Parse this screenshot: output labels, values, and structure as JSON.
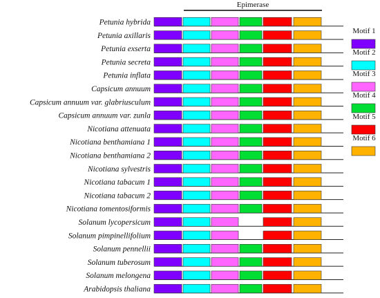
{
  "header": {
    "label": "Epimerase"
  },
  "motifs": [
    {
      "label": "Motif 1",
      "color": "#7F00FF"
    },
    {
      "label": "Motif 2",
      "color": "#00FFFF"
    },
    {
      "label": "Motif 3",
      "color": "#FF66FF"
    },
    {
      "label": "Motif 4",
      "color": "#00DD33"
    },
    {
      "label": "Motif 5",
      "color": "#FF0000"
    },
    {
      "label": "Motif 6",
      "color": "#FFB300"
    }
  ],
  "species": [
    {
      "name": "Petunia hybrida",
      "motifs": [
        1,
        2,
        3,
        4,
        5,
        6
      ]
    },
    {
      "name": "Petunia axillaris",
      "motifs": [
        1,
        2,
        3,
        4,
        5,
        6
      ]
    },
    {
      "name": "Petunia exserta",
      "motifs": [
        1,
        2,
        3,
        4,
        5,
        6
      ]
    },
    {
      "name": "Petunia secreta",
      "motifs": [
        1,
        2,
        3,
        4,
        5,
        6
      ]
    },
    {
      "name": "Petunia inflata",
      "motifs": [
        1,
        2,
        3,
        4,
        5,
        6
      ]
    },
    {
      "name": "Capsicum annuum",
      "motifs": [
        1,
        2,
        3,
        4,
        5,
        6
      ]
    },
    {
      "name": "Capsicum annuum var. glabriusculum",
      "motifs": [
        1,
        2,
        3,
        4,
        5,
        6
      ]
    },
    {
      "name": "Capsicum annuum var. zunla",
      "motifs": [
        1,
        2,
        3,
        4,
        5,
        6
      ]
    },
    {
      "name": "Nicotiana attenuata",
      "motifs": [
        1,
        2,
        3,
        4,
        5,
        6
      ]
    },
    {
      "name": "Nicotiana benthamiana 1",
      "motifs": [
        1,
        2,
        3,
        4,
        5,
        6
      ]
    },
    {
      "name": "Nicotiana benthamiana 2",
      "motifs": [
        1,
        2,
        3,
        4,
        5,
        6
      ]
    },
    {
      "name": "Nicotiana sylvestris",
      "motifs": [
        1,
        2,
        3,
        4,
        5,
        6
      ]
    },
    {
      "name": "Nicotiana tabacum 1",
      "motifs": [
        1,
        2,
        3,
        4,
        5,
        6
      ]
    },
    {
      "name": "Nicotiana tabacum 2",
      "motifs": [
        1,
        2,
        3,
        4,
        5,
        6
      ]
    },
    {
      "name": "Nicotiana tomentosiformis",
      "motifs": [
        1,
        2,
        3,
        4,
        5,
        6
      ]
    },
    {
      "name": "Solanum lycopersicum",
      "motifs": [
        1,
        2,
        3,
        5,
        6
      ]
    },
    {
      "name": "Solanum pimpinellifolium",
      "motifs": [
        1,
        2,
        3,
        5,
        6
      ]
    },
    {
      "name": "Solanum pennellii",
      "motifs": [
        1,
        2,
        3,
        4,
        5,
        6
      ]
    },
    {
      "name": "Solanum tuberosum",
      "motifs": [
        1,
        2,
        3,
        4,
        5,
        6
      ]
    },
    {
      "name": "Solanum melongena",
      "motifs": [
        1,
        2,
        3,
        4,
        5,
        6
      ]
    },
    {
      "name": "Arabidopsis thaliana",
      "motifs": [
        1,
        2,
        3,
        4,
        5,
        6
      ]
    }
  ]
}
